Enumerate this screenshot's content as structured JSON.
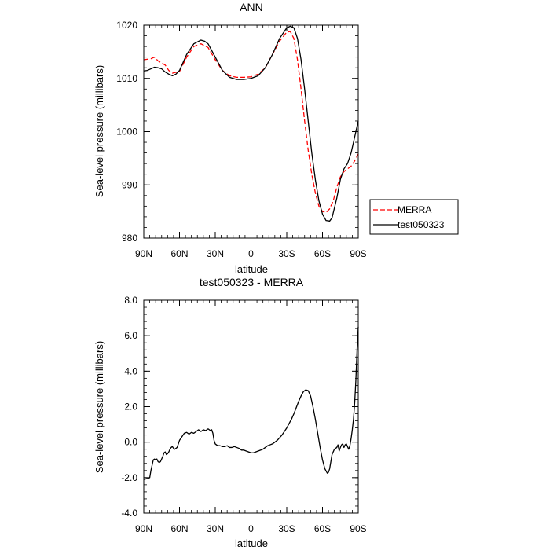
{
  "chart_data": [
    {
      "type": "line",
      "title": "ANN",
      "xlabel": "latitude",
      "ylabel": "Sea-level pressure (millibars)",
      "xlim": [
        90,
        -90
      ],
      "ylim": [
        980,
        1020
      ],
      "xticks": [
        90,
        60,
        30,
        0,
        -30,
        -60,
        -90
      ],
      "xtick_labels": [
        "90N",
        "60N",
        "30N",
        "0",
        "30S",
        "60S",
        "90S"
      ],
      "yticks": [
        980,
        990,
        1000,
        1010,
        1020
      ],
      "ytick_labels": [
        "980",
        "990",
        "1000",
        "1010",
        "1020"
      ],
      "legend": {
        "placement": "right",
        "entries": [
          "MERRA",
          "test050323"
        ]
      },
      "series": [
        {
          "name": "MERRA",
          "color": "#ff0000",
          "dash": "dashed",
          "x": [
            90,
            84,
            81,
            78,
            72,
            69,
            66,
            60,
            54,
            48,
            42,
            36,
            30,
            24,
            18,
            12,
            6,
            0,
            -6,
            -12,
            -18,
            -24,
            -30,
            -33,
            -36,
            -39,
            -42,
            -45,
            -48,
            -51,
            -54,
            -57,
            -60,
            -63,
            -66,
            -69,
            -72,
            -75,
            -78,
            -81,
            -84,
            -87,
            -90
          ],
          "y": [
            1013.5,
            1013.7,
            1014.0,
            1013.3,
            1012.5,
            1011.5,
            1011.0,
            1011.3,
            1014.0,
            1016.0,
            1016.5,
            1015.8,
            1013.5,
            1011.5,
            1010.5,
            1010.2,
            1010.2,
            1010.3,
            1010.8,
            1012.0,
            1014.5,
            1017.0,
            1018.7,
            1018.8,
            1017.5,
            1013.5,
            1008.0,
            1002.0,
            996.5,
            992.0,
            988.5,
            986.0,
            985.0,
            984.8,
            985.5,
            987.0,
            989.5,
            991.5,
            992.5,
            993.0,
            993.5,
            994.5,
            995.8
          ]
        },
        {
          "name": "test050323",
          "color": "#000000",
          "dash": "solid",
          "x": [
            90,
            87,
            84,
            81,
            78,
            75,
            72,
            69,
            66,
            63,
            60,
            54,
            48,
            42,
            39,
            36,
            30,
            24,
            18,
            12,
            6,
            0,
            -6,
            -12,
            -18,
            -24,
            -30,
            -33,
            -36,
            -39,
            -42,
            -45,
            -48,
            -51,
            -54,
            -57,
            -60,
            -63,
            -66,
            -68,
            -72,
            -75,
            -78,
            -81,
            -84,
            -87,
            -90
          ],
          "y": [
            1011.4,
            1011.5,
            1011.8,
            1012.1,
            1012.0,
            1011.8,
            1011.2,
            1010.8,
            1010.5,
            1010.8,
            1011.5,
            1014.5,
            1016.5,
            1017.2,
            1017.0,
            1016.5,
            1014.0,
            1011.5,
            1010.2,
            1009.8,
            1009.8,
            1010.0,
            1010.5,
            1012.0,
            1014.5,
            1017.5,
            1019.5,
            1019.8,
            1019.5,
            1017.5,
            1013.5,
            1008.0,
            1002.0,
            996.0,
            991.0,
            987.0,
            984.5,
            983.3,
            983.2,
            983.8,
            987.5,
            991.0,
            993.0,
            994.0,
            996.0,
            999.0,
            1002.0
          ]
        }
      ]
    },
    {
      "type": "line",
      "title": "test050323 - MERRA",
      "xlabel": "latitude",
      "ylabel": "Sea-level pressure (millibars)",
      "xlim": [
        90,
        -90
      ],
      "ylim": [
        -4.0,
        8.0
      ],
      "xticks": [
        90,
        60,
        30,
        0,
        -30,
        -60,
        -90
      ],
      "xtick_labels": [
        "90N",
        "60N",
        "30N",
        "0",
        "30S",
        "60S",
        "90S"
      ],
      "yticks": [
        -4,
        -2,
        0,
        2,
        4,
        6,
        8
      ],
      "ytick_labels": [
        "-4.0",
        "-2.0",
        "0.0",
        "2.0",
        "4.0",
        "6.0",
        "8.0"
      ],
      "series": [
        {
          "color": "#000000",
          "dash": "solid",
          "x": [
            90,
            87,
            85,
            84,
            83,
            82,
            81,
            80,
            79,
            78,
            77,
            76,
            74,
            73,
            72,
            71,
            70,
            69,
            68,
            67,
            66,
            65,
            64,
            63,
            62,
            61,
            60,
            58,
            56,
            54,
            52,
            50,
            48,
            46,
            44,
            42,
            40,
            38,
            36,
            34,
            33,
            32,
            31,
            30,
            28,
            26,
            24,
            22,
            20,
            18,
            16,
            14,
            12,
            10,
            8,
            6,
            4,
            2,
            0,
            -2,
            -4,
            -6,
            -8,
            -10,
            -12,
            -14,
            -16,
            -18,
            -20,
            -22,
            -24,
            -26,
            -28,
            -30,
            -32,
            -34,
            -36,
            -38,
            -40,
            -42,
            -44,
            -46,
            -48,
            -50,
            -52,
            -54,
            -56,
            -58,
            -60,
            -62,
            -64,
            -65,
            -66,
            -67,
            -68,
            -70,
            -72,
            -73,
            -74,
            -75,
            -76,
            -77,
            -78,
            -79,
            -80,
            -81,
            -82,
            -83,
            -84,
            -85,
            -86,
            -87,
            -88,
            -89,
            -90
          ],
          "y": [
            -2.1,
            -2.05,
            -2.0,
            -1.6,
            -1.3,
            -1.0,
            -0.95,
            -1.0,
            -0.95,
            -1.1,
            -1.15,
            -1.1,
            -0.8,
            -0.6,
            -0.55,
            -0.7,
            -0.65,
            -0.55,
            -0.4,
            -0.3,
            -0.25,
            -0.35,
            -0.4,
            -0.35,
            -0.3,
            -0.1,
            0.1,
            0.3,
            0.5,
            0.55,
            0.45,
            0.55,
            0.5,
            0.6,
            0.7,
            0.6,
            0.7,
            0.65,
            0.75,
            0.65,
            0.7,
            0.5,
            0.1,
            -0.1,
            -0.2,
            -0.2,
            -0.25,
            -0.25,
            -0.2,
            -0.3,
            -0.3,
            -0.25,
            -0.3,
            -0.35,
            -0.45,
            -0.45,
            -0.5,
            -0.55,
            -0.6,
            -0.6,
            -0.55,
            -0.5,
            -0.45,
            -0.4,
            -0.3,
            -0.2,
            -0.15,
            -0.1,
            0.0,
            0.1,
            0.25,
            0.4,
            0.6,
            0.8,
            1.05,
            1.3,
            1.6,
            1.95,
            2.3,
            2.6,
            2.85,
            2.95,
            2.9,
            2.6,
            2.0,
            1.3,
            0.5,
            -0.3,
            -1.0,
            -1.5,
            -1.75,
            -1.7,
            -1.5,
            -1.1,
            -0.7,
            -0.4,
            -0.3,
            -0.15,
            -0.5,
            -0.3,
            -0.15,
            -0.1,
            -0.3,
            -0.15,
            -0.1,
            -0.25,
            -0.4,
            -0.2,
            0.2,
            0.7,
            1.3,
            2.2,
            3.5,
            5.2,
            6.5
          ]
        }
      ]
    }
  ]
}
